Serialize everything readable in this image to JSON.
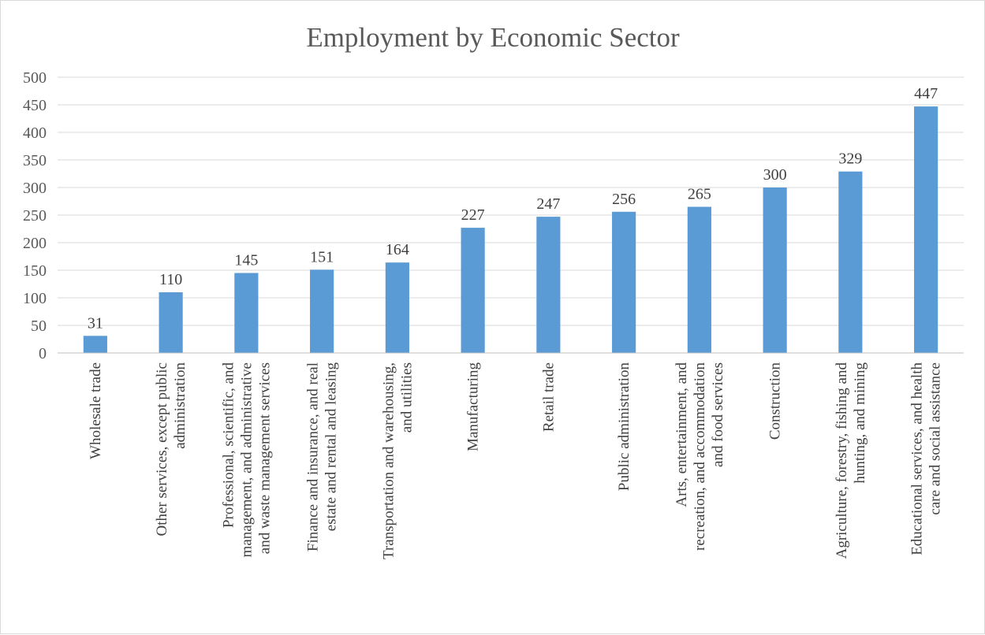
{
  "chart_data": {
    "type": "bar",
    "title": "Employment by Economic Sector",
    "xlabel": "",
    "ylabel": "",
    "ylim": [
      0,
      500
    ],
    "yticks": [
      0,
      50,
      100,
      150,
      200,
      250,
      300,
      350,
      400,
      450,
      500
    ],
    "grid": true,
    "bar_color": "#5b9bd5",
    "categories": [
      "Wholesale trade",
      "Other services, except public administration",
      "Professional, scientific, and management, and administrative and waste management services",
      "Finance and insurance, and real estate and rental and leasing",
      "Transportation and warehousing, and utilities",
      "Manufacturing",
      "Retail trade",
      "Public administration",
      "Arts, entertainment, and recreation, and accommodation and food services",
      "Construction",
      "Agriculture, forestry, fishing and hunting, and mining",
      "Educational services, and health care and social assistance"
    ],
    "category_lines": [
      [
        "Wholesale trade"
      ],
      [
        "Other services, except public",
        "administration"
      ],
      [
        "Professional, scientific, and",
        "management, and administrative",
        "and waste management services"
      ],
      [
        "Finance and insurance, and real",
        "estate and rental and leasing"
      ],
      [
        "Transportation and warehousing,",
        "and utilities"
      ],
      [
        "Manufacturing"
      ],
      [
        "Retail trade"
      ],
      [
        "Public administration"
      ],
      [
        "Arts, entertainment, and",
        "recreation, and accommodation",
        "and food services"
      ],
      [
        "Construction"
      ],
      [
        "Agriculture, forestry, fishing and",
        "hunting, and mining"
      ],
      [
        "Educational services, and health",
        "care and social assistance"
      ]
    ],
    "values": [
      31,
      110,
      145,
      151,
      164,
      227,
      247,
      256,
      265,
      300,
      329,
      447
    ]
  }
}
